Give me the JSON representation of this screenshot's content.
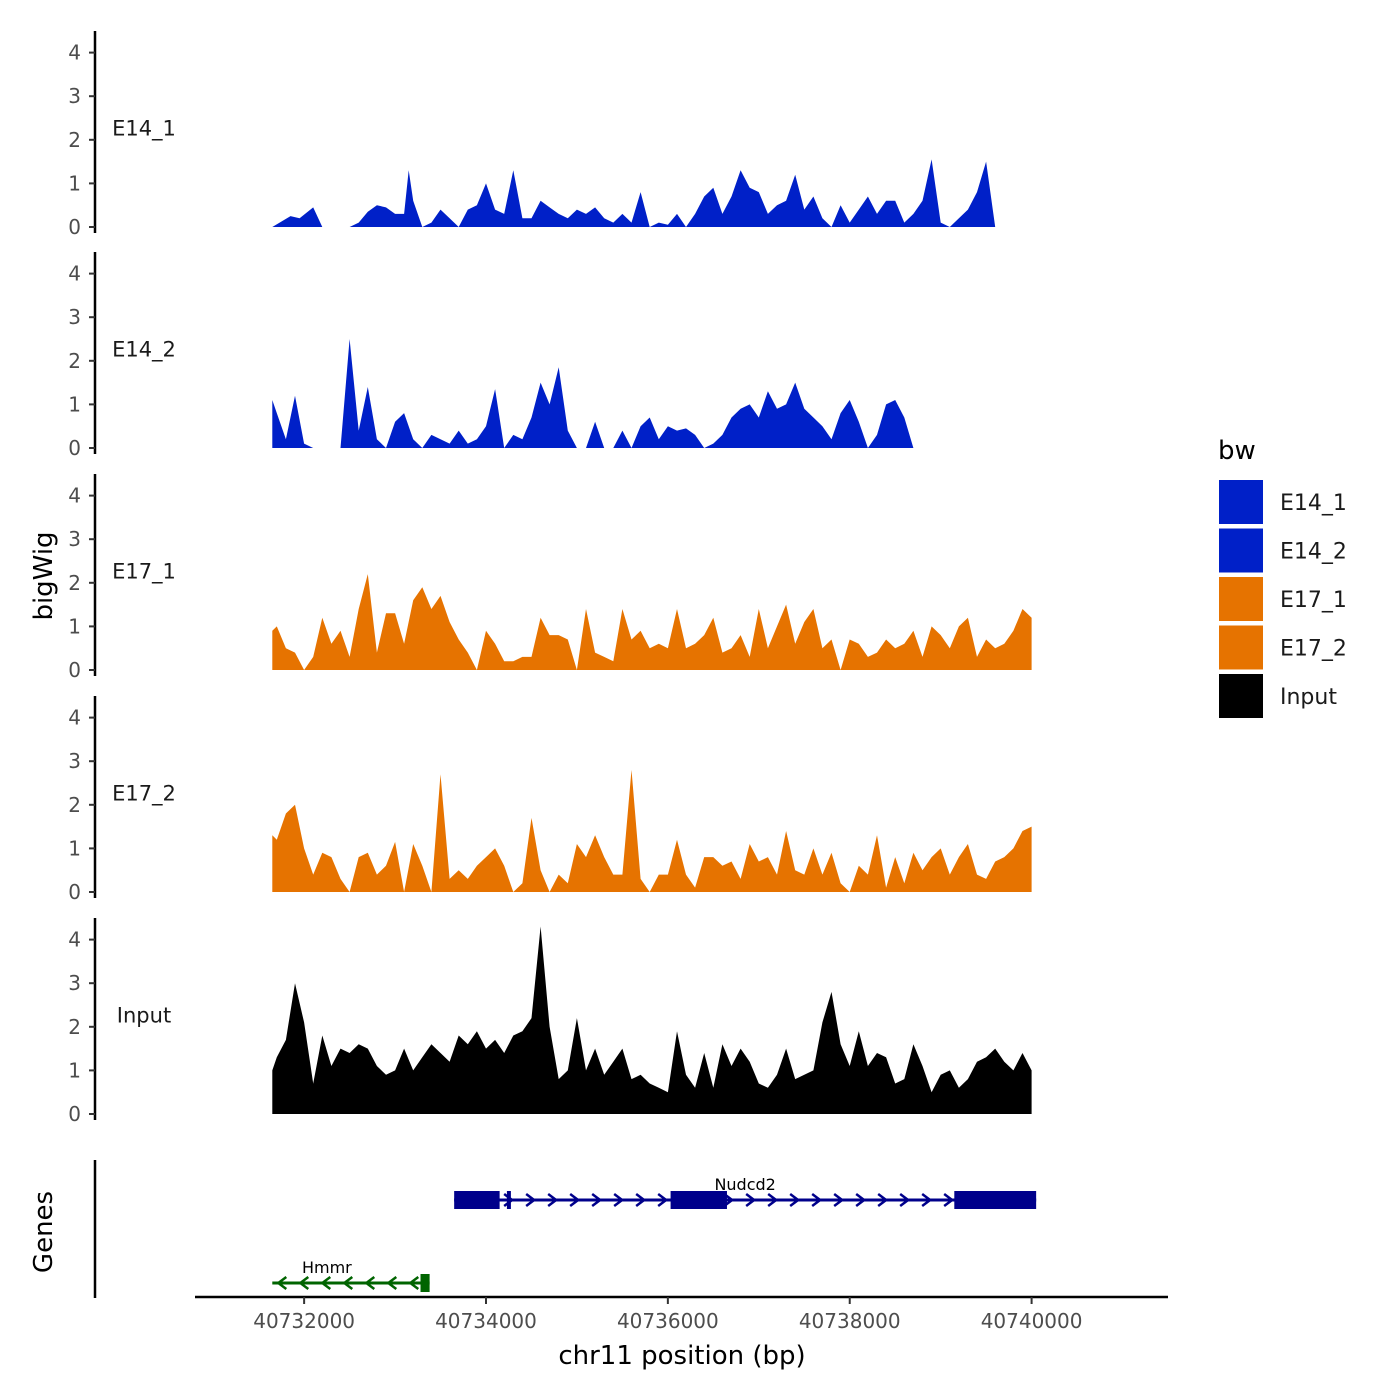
{
  "chart_data": {
    "type": "area",
    "title": "",
    "ylabel": "bigWig",
    "genes_label": "Genes",
    "xlabel": "chr11 position (bp)",
    "xlim": [
      40730800,
      40741500
    ],
    "ylim": [
      0,
      4.5
    ],
    "x_ticks": [
      40732000,
      40734000,
      40736000,
      40738000,
      40740000
    ],
    "y_ticks": [
      0,
      1,
      2,
      3,
      4
    ],
    "legend": {
      "title": "bw",
      "placement": "right",
      "entries": [
        {
          "name": "E14_1",
          "color": "#0020C8"
        },
        {
          "name": "E14_2",
          "color": "#0020C8"
        },
        {
          "name": "E17_1",
          "color": "#E67300"
        },
        {
          "name": "E17_2",
          "color": "#E67300"
        },
        {
          "name": "Input",
          "color": "#000000"
        }
      ]
    },
    "series": [
      {
        "name": "E14_1",
        "color": "#0020C8",
        "x": [
          40731650,
          40731850,
          40731950,
          40732100,
          40732200,
          40732300,
          40732400,
          40732500,
          40732600,
          40732700,
          40732800,
          40732900,
          40733000,
          40733100,
          40733150,
          40733200,
          40733300,
          40733400,
          40733500,
          40733600,
          40733700,
          40733800,
          40733900,
          40734000,
          40734100,
          40734200,
          40734300,
          40734400,
          40734500,
          40734600,
          40734700,
          40734800,
          40734900,
          40735000,
          40735100,
          40735200,
          40735300,
          40735400,
          40735500,
          40735600,
          40735700,
          40735800,
          40735900,
          40736000,
          40736100,
          40736200,
          40736300,
          40736400,
          40736500,
          40736600,
          40736700,
          40736800,
          40736900,
          40737000,
          40737100,
          40737200,
          40737300,
          40737400,
          40737500,
          40737600,
          40737700,
          40737800,
          40737900,
          40738000,
          40738100,
          40738200,
          40738300,
          40738400,
          40738500,
          40738600,
          40738700,
          40738800,
          40738900,
          40739000,
          40739100,
          40739200,
          40739300,
          40739400,
          40739500,
          40739600,
          40739700,
          40739800,
          40739900,
          40740000
        ],
        "y": [
          0,
          0.25,
          0.2,
          0.45,
          0,
          0,
          0,
          0,
          0.1,
          0.35,
          0.5,
          0.45,
          0.3,
          0.3,
          1.3,
          0.6,
          0,
          0.1,
          0.4,
          0.2,
          0,
          0.4,
          0.5,
          1.0,
          0.4,
          0.3,
          1.3,
          0.2,
          0.2,
          0.6,
          0.45,
          0.3,
          0.2,
          0.4,
          0.3,
          0.45,
          0.2,
          0.1,
          0.3,
          0.1,
          0.8,
          0,
          0.1,
          0.05,
          0.3,
          0,
          0.3,
          0.7,
          0.9,
          0.3,
          0.7,
          1.3,
          0.9,
          0.8,
          0.3,
          0.5,
          0.6,
          1.2,
          0.4,
          0.7,
          0.2,
          0,
          0.5,
          0.1,
          0.4,
          0.7,
          0.3,
          0.6,
          0.6,
          0.1,
          0.3,
          0.6,
          1.55,
          0.1,
          0,
          0.2,
          0.4,
          0.8,
          1.5,
          0,
          0,
          0,
          0,
          0
        ],
        "domain": [
          40731650,
          40740000
        ]
      },
      {
        "name": "E14_2",
        "color": "#0020C8",
        "x": [
          40731650,
          40731700,
          40731800,
          40731900,
          40732000,
          40732100,
          40732200,
          40732300,
          40732400,
          40732500,
          40732600,
          40732700,
          40732800,
          40732900,
          40733000,
          40733100,
          40733200,
          40733300,
          40733400,
          40733500,
          40733600,
          40733700,
          40733800,
          40733900,
          40734000,
          40734100,
          40734200,
          40734300,
          40734400,
          40734500,
          40734600,
          40734700,
          40734800,
          40734900,
          40735000,
          40735100,
          40735200,
          40735300,
          40735400,
          40735500,
          40735600,
          40735700,
          40735800,
          40735900,
          40736000,
          40736100,
          40736200,
          40736300,
          40736400,
          40736500,
          40736600,
          40736700,
          40736800,
          40736900,
          40737000,
          40737100,
          40737200,
          40737300,
          40737400,
          40737500,
          40737600,
          40737700,
          40737800,
          40737900,
          40738000,
          40738100,
          40738200,
          40738300,
          40738400,
          40738500,
          40738600,
          40738700,
          40738800,
          40738900,
          40739000,
          40739100,
          40739200,
          40739300,
          40739400,
          40739500,
          40739600,
          40739700,
          40739800,
          40739900,
          40740000
        ],
        "y": [
          1.1,
          0.8,
          0.2,
          1.2,
          0.1,
          0,
          0,
          0,
          0,
          2.5,
          0.4,
          1.4,
          0.2,
          0,
          0.6,
          0.8,
          0.2,
          0,
          0.3,
          0.2,
          0.1,
          0.4,
          0.1,
          0.2,
          0.5,
          1.35,
          0,
          0.3,
          0.2,
          0.7,
          1.5,
          1.0,
          1.85,
          0.4,
          0,
          0,
          0.6,
          0,
          0,
          0.4,
          0,
          0.5,
          0.7,
          0.2,
          0.5,
          0.4,
          0.45,
          0.3,
          0,
          0.1,
          0.3,
          0.7,
          0.9,
          1.0,
          0.7,
          1.3,
          0.9,
          1.0,
          1.5,
          0.9,
          0.7,
          0.5,
          0.2,
          0.8,
          1.1,
          0.6,
          0,
          0.3,
          1.0,
          1.1,
          0.7,
          0,
          0,
          0,
          0,
          0,
          0,
          0,
          0,
          0,
          0,
          0,
          0,
          0,
          0
        ],
        "domain": [
          40731650,
          40739800
        ]
      },
      {
        "name": "E17_1",
        "color": "#E67300",
        "x": [
          40731650,
          40731700,
          40731800,
          40731900,
          40732000,
          40732100,
          40732200,
          40732300,
          40732400,
          40732500,
          40732600,
          40732700,
          40732800,
          40732900,
          40733000,
          40733100,
          40733200,
          40733300,
          40733400,
          40733500,
          40733600,
          40733700,
          40733800,
          40733900,
          40734000,
          40734100,
          40734200,
          40734300,
          40734400,
          40734500,
          40734600,
          40734700,
          40734800,
          40734900,
          40735000,
          40735100,
          40735200,
          40735300,
          40735400,
          40735500,
          40735600,
          40735700,
          40735800,
          40735900,
          40736000,
          40736100,
          40736200,
          40736300,
          40736400,
          40736500,
          40736600,
          40736700,
          40736800,
          40736900,
          40737000,
          40737100,
          40737200,
          40737300,
          40737400,
          40737500,
          40737600,
          40737700,
          40737800,
          40737900,
          40738000,
          40738100,
          40738200,
          40738300,
          40738400,
          40738500,
          40738600,
          40738700,
          40738800,
          40738900,
          40739000,
          40739100,
          40739200,
          40739300,
          40739400,
          40739500,
          40739600,
          40739700,
          40739800,
          40739900,
          40740000
        ],
        "y": [
          0.9,
          1.0,
          0.5,
          0.4,
          0,
          0.3,
          1.2,
          0.6,
          0.9,
          0.3,
          1.4,
          2.2,
          0.4,
          1.3,
          1.3,
          0.6,
          1.6,
          1.9,
          1.4,
          1.7,
          1.1,
          0.7,
          0.4,
          0,
          0.9,
          0.6,
          0.2,
          0.2,
          0.3,
          0.3,
          1.2,
          0.8,
          0.8,
          0.7,
          0,
          1.4,
          0.4,
          0.3,
          0.2,
          1.4,
          0.7,
          0.9,
          0.5,
          0.6,
          0.5,
          1.4,
          0.5,
          0.6,
          0.8,
          1.2,
          0.4,
          0.5,
          0.8,
          0.3,
          1.4,
          0.5,
          1.0,
          1.5,
          0.6,
          1.1,
          1.4,
          0.5,
          0.7,
          0,
          0.7,
          0.6,
          0.3,
          0.4,
          0.7,
          0.5,
          0.6,
          0.9,
          0.3,
          1.0,
          0.8,
          0.5,
          1.0,
          1.2,
          0.3,
          0.7,
          0.5,
          0.6,
          0.9,
          1.4,
          1.2
        ],
        "domain": [
          40731650,
          40740000
        ]
      },
      {
        "name": "E17_2",
        "color": "#E67300",
        "x": [
          40731650,
          40731700,
          40731800,
          40731900,
          40732000,
          40732100,
          40732200,
          40732300,
          40732400,
          40732500,
          40732600,
          40732700,
          40732800,
          40732900,
          40733000,
          40733100,
          40733200,
          40733300,
          40733400,
          40733500,
          40733600,
          40733700,
          40733800,
          40733900,
          40734000,
          40734100,
          40734200,
          40734300,
          40734400,
          40734500,
          40734600,
          40734700,
          40734800,
          40734900,
          40735000,
          40735100,
          40735200,
          40735300,
          40735400,
          40735500,
          40735600,
          40735700,
          40735800,
          40735900,
          40736000,
          40736100,
          40736200,
          40736300,
          40736400,
          40736500,
          40736600,
          40736700,
          40736800,
          40736900,
          40737000,
          40737100,
          40737200,
          40737300,
          40737400,
          40737500,
          40737600,
          40737700,
          40737800,
          40737900,
          40738000,
          40738100,
          40738200,
          40738300,
          40738400,
          40738500,
          40738600,
          40738700,
          40738800,
          40738900,
          40739000,
          40739100,
          40739200,
          40739300,
          40739400,
          40739500,
          40739600,
          40739700,
          40739800,
          40739900,
          40740000
        ],
        "y": [
          1.3,
          1.2,
          1.8,
          2.0,
          1.0,
          0.4,
          0.9,
          0.8,
          0.3,
          0,
          0.8,
          0.9,
          0.4,
          0.6,
          1.15,
          0,
          1.1,
          0.6,
          0,
          2.7,
          0.3,
          0.5,
          0.3,
          0.6,
          0.8,
          1.0,
          0.6,
          0,
          0.2,
          1.7,
          0.5,
          0,
          0.4,
          0.2,
          1.1,
          0.8,
          1.3,
          0.8,
          0.4,
          0.4,
          2.8,
          0.3,
          0,
          0.4,
          0.4,
          1.2,
          0.4,
          0.1,
          0.8,
          0.8,
          0.6,
          0.7,
          0.3,
          1.1,
          0.7,
          0.8,
          0.4,
          1.4,
          0.5,
          0.4,
          1.0,
          0.4,
          0.9,
          0.2,
          0,
          0.6,
          0.4,
          1.3,
          0.1,
          0.8,
          0.2,
          0.9,
          0.5,
          0.8,
          1.0,
          0.4,
          0.8,
          1.1,
          0.4,
          0.3,
          0.7,
          0.8,
          1.0,
          1.4,
          1.5
        ],
        "domain": [
          40731650,
          40740000
        ]
      },
      {
        "name": "Input",
        "color": "#000000",
        "x": [
          40731650,
          40731700,
          40731800,
          40731900,
          40732000,
          40732100,
          40732200,
          40732300,
          40732400,
          40732500,
          40732600,
          40732700,
          40732800,
          40732900,
          40733000,
          40733100,
          40733200,
          40733300,
          40733400,
          40733500,
          40733600,
          40733700,
          40733800,
          40733900,
          40734000,
          40734100,
          40734200,
          40734300,
          40734400,
          40734500,
          40734600,
          40734700,
          40734800,
          40734900,
          40735000,
          40735100,
          40735200,
          40735300,
          40735400,
          40735500,
          40735600,
          40735700,
          40735800,
          40735900,
          40736000,
          40736100,
          40736200,
          40736300,
          40736400,
          40736500,
          40736600,
          40736700,
          40736800,
          40736900,
          40737000,
          40737100,
          40737200,
          40737300,
          40737400,
          40737500,
          40737600,
          40737700,
          40737800,
          40737900,
          40738000,
          40738100,
          40738200,
          40738300,
          40738400,
          40738500,
          40738600,
          40738700,
          40738800,
          40738900,
          40739000,
          40739100,
          40739200,
          40739300,
          40739400,
          40739500,
          40739600,
          40739700,
          40739800,
          40739900,
          40740000
        ],
        "y": [
          1.0,
          1.3,
          1.7,
          3.0,
          2.1,
          0.7,
          1.8,
          1.1,
          1.5,
          1.4,
          1.6,
          1.5,
          1.1,
          0.9,
          1.0,
          1.5,
          1.0,
          1.3,
          1.6,
          1.4,
          1.2,
          1.8,
          1.6,
          1.9,
          1.5,
          1.7,
          1.4,
          1.8,
          1.9,
          2.2,
          4.3,
          2.0,
          0.8,
          1.0,
          2.2,
          1.0,
          1.5,
          0.9,
          1.2,
          1.5,
          0.8,
          0.9,
          0.7,
          0.6,
          0.5,
          1.9,
          0.9,
          0.6,
          1.4,
          0.6,
          1.6,
          1.1,
          1.5,
          1.2,
          0.7,
          0.6,
          0.9,
          1.5,
          0.8,
          0.9,
          1.0,
          2.1,
          2.8,
          1.6,
          1.1,
          1.9,
          1.1,
          1.4,
          1.3,
          0.7,
          0.8,
          1.6,
          1.1,
          0.5,
          0.9,
          1.0,
          0.6,
          0.8,
          1.2,
          1.3,
          1.5,
          1.2,
          1.0,
          1.4,
          1.0
        ],
        "domain": [
          40731650,
          40740000
        ]
      }
    ],
    "genes": [
      {
        "name": "Nudcd2",
        "color": "#00008B",
        "start": 40733650,
        "end": 40740050,
        "strand": "+",
        "exons": [
          [
            40733650,
            40734150
          ],
          [
            40734230,
            40734260
          ],
          [
            40736030,
            40736650
          ],
          [
            40739150,
            40740050
          ]
        ]
      },
      {
        "name": "Hmmr",
        "color": "#006400",
        "start": 40731650,
        "end": 40733380,
        "strand": "-",
        "exons": [
          [
            40733280,
            40733380
          ]
        ]
      }
    ]
  }
}
